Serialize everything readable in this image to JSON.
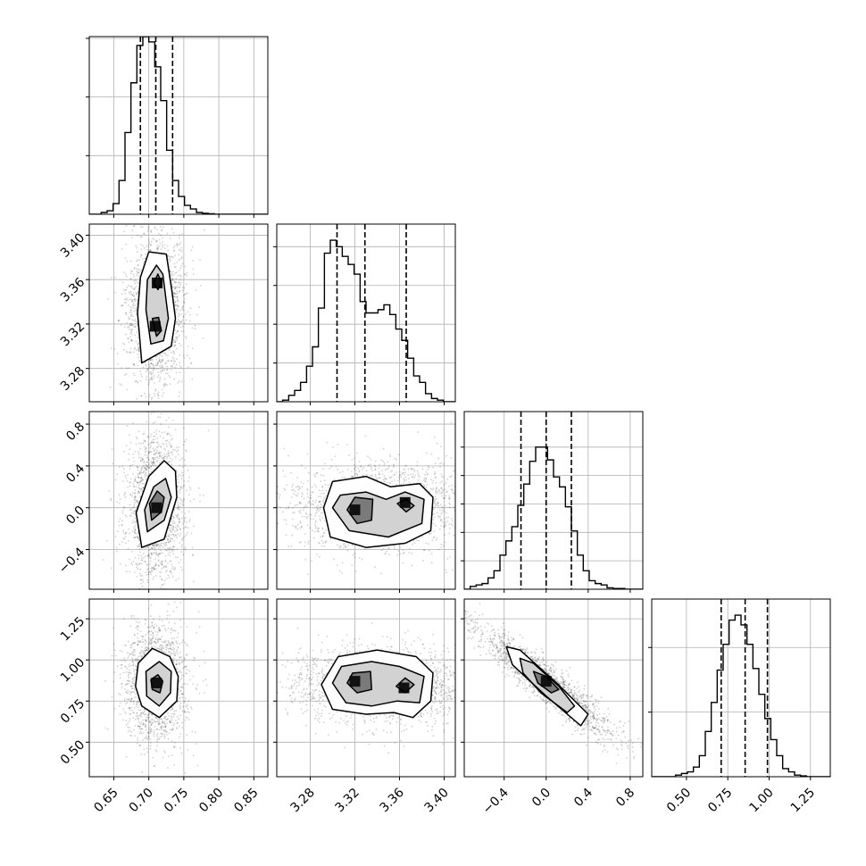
{
  "chart_data": {
    "type": "corner",
    "parameters": [
      {
        "range": [
          0.615,
          0.87
        ],
        "ticks": [
          0.65,
          0.7,
          0.75,
          0.8,
          0.85
        ],
        "tick_labels": [
          "0.65",
          "0.70",
          "0.75",
          "0.80",
          "0.85"
        ],
        "quantiles": [
          0.688,
          0.71,
          0.734
        ],
        "hist_ylim": [
          0,
          1
        ],
        "hist": {
          "edges": [
            0.615,
            0.6235,
            0.632,
            0.6405,
            0.649,
            0.6575,
            0.666,
            0.6745,
            0.683,
            0.6915,
            0.7,
            0.7085,
            0.717,
            0.7255,
            0.734,
            0.7425,
            0.751,
            0.7595,
            0.768,
            0.7765,
            0.785,
            0.7935,
            0.802,
            0.8105,
            0.819,
            0.8275,
            0.836,
            0.8445,
            0.853,
            0.8615,
            0.87
          ],
          "counts": [
            0,
            0,
            0.01,
            0.02,
            0.06,
            0.19,
            0.46,
            0.74,
            0.95,
            1.0,
            0.97,
            0.83,
            0.64,
            0.36,
            0.19,
            0.1,
            0.05,
            0.03,
            0.01,
            0.005,
            0.003,
            0,
            0,
            0,
            0,
            0,
            0,
            0,
            0,
            0
          ]
        }
      },
      {
        "range": [
          3.25,
          3.41
        ],
        "ticks": [
          3.28,
          3.32,
          3.36,
          3.4
        ],
        "tick_labels": [
          "3.28",
          "3.32",
          "3.36",
          "3.40"
        ],
        "quantiles": [
          3.304,
          3.329,
          3.366
        ],
        "hist_ylim": [
          0,
          1.1
        ],
        "hist": {
          "edges": [
            3.25,
            3.2553,
            3.2607,
            3.266,
            3.2713,
            3.2767,
            3.282,
            3.2873,
            3.2927,
            3.298,
            3.3033,
            3.3087,
            3.314,
            3.3193,
            3.3247,
            3.33,
            3.3353,
            3.3407,
            3.346,
            3.3513,
            3.3567,
            3.362,
            3.3673,
            3.3727,
            3.378,
            3.3833,
            3.3887,
            3.394,
            3.3993,
            3.4047,
            3.41
          ],
          "counts": [
            0,
            0.01,
            0.04,
            0.07,
            0.12,
            0.22,
            0.34,
            0.58,
            0.92,
            1.0,
            0.96,
            0.9,
            0.85,
            0.79,
            0.62,
            0.55,
            0.55,
            0.57,
            0.6,
            0.54,
            0.45,
            0.38,
            0.27,
            0.16,
            0.12,
            0.05,
            0.02,
            0.01,
            0,
            0
          ]
        }
      },
      {
        "range": [
          -0.78,
          0.92
        ],
        "ticks": [
          -0.4,
          0.0,
          0.4,
          0.8
        ],
        "tick_labels": [
          "−0.4",
          "0.0",
          "0.4",
          "0.8"
        ],
        "quantiles": [
          -0.24,
          0.0,
          0.24
        ],
        "hist_ylim": [
          0,
          1.25
        ],
        "hist": {
          "edges": [
            -0.78,
            -0.7233,
            -0.6667,
            -0.61,
            -0.5533,
            -0.4967,
            -0.44,
            -0.3833,
            -0.3267,
            -0.27,
            -0.2133,
            -0.1567,
            -0.1,
            -0.0433,
            0.0133,
            0.07,
            0.1267,
            0.1833,
            0.24,
            0.2967,
            0.3533,
            0.41,
            0.4667,
            0.5233,
            0.58,
            0.6367,
            0.6933,
            0.75,
            0.8067,
            0.8633,
            0.92
          ],
          "counts": [
            0,
            0.02,
            0.03,
            0.04,
            0.08,
            0.13,
            0.24,
            0.34,
            0.44,
            0.59,
            0.74,
            0.9,
            1.0,
            1.0,
            0.91,
            0.79,
            0.72,
            0.58,
            0.41,
            0.24,
            0.13,
            0.06,
            0.04,
            0.03,
            0.01,
            0.005,
            0.005,
            0,
            0,
            0
          ]
        }
      },
      {
        "range": [
          0.29,
          1.37
        ],
        "ticks": [
          0.5,
          0.75,
          1.0,
          1.25
        ],
        "tick_labels": [
          "0.50",
          "0.75",
          "1.00",
          "1.25"
        ],
        "quantiles": [
          0.71,
          0.855,
          0.99
        ],
        "hist_ylim": [
          0,
          1.1
        ],
        "hist": {
          "edges": [
            0.29,
            0.326,
            0.362,
            0.398,
            0.434,
            0.47,
            0.506,
            0.542,
            0.578,
            0.614,
            0.65,
            0.686,
            0.722,
            0.758,
            0.794,
            0.83,
            0.866,
            0.902,
            0.938,
            0.974,
            1.01,
            1.046,
            1.082,
            1.118,
            1.154,
            1.19,
            1.226,
            1.262,
            1.298,
            1.334,
            1.37
          ],
          "counts": [
            0,
            0,
            0,
            0,
            0.01,
            0.02,
            0.03,
            0.06,
            0.13,
            0.28,
            0.46,
            0.66,
            0.82,
            0.97,
            1.0,
            0.94,
            0.82,
            0.67,
            0.51,
            0.36,
            0.23,
            0.13,
            0.05,
            0.03,
            0.01,
            0.005,
            0,
            0,
            0,
            0
          ]
        }
      }
    ],
    "pairs": [
      {
        "row": 1,
        "col": 0,
        "x_center": 0.71,
        "y_center": 3.338,
        "x_sigma": 0.018,
        "y_sigma": 0.035,
        "modes": [
          [
            0.712,
            3.357
          ],
          [
            0.709,
            3.318
          ]
        ],
        "contour_levels": [
          [
            [
              0.684,
              3.33
            ],
            [
              0.69,
              3.285
            ],
            [
              0.71,
              3.292
            ],
            [
              0.732,
              3.3
            ],
            [
              0.738,
              3.325
            ],
            [
              0.733,
              3.35
            ],
            [
              0.725,
              3.383
            ],
            [
              0.7,
              3.385
            ],
            [
              0.688,
              3.362
            ]
          ],
          [
            [
              0.696,
              3.333
            ],
            [
              0.703,
              3.302
            ],
            [
              0.721,
              3.305
            ],
            [
              0.728,
              3.325
            ],
            [
              0.72,
              3.365
            ],
            [
              0.711,
              3.373
            ],
            [
              0.698,
              3.36
            ]
          ],
          [
            [
              0.705,
              3.325
            ],
            [
              0.711,
              3.309
            ],
            [
              0.718,
              3.314
            ],
            [
              0.714,
              3.326
            ]
          ],
          [
            [
              0.707,
              3.357
            ],
            [
              0.713,
              3.351
            ],
            [
              0.718,
              3.357
            ],
            [
              0.713,
              3.365
            ]
          ]
        ]
      },
      {
        "row": 2,
        "col": 0,
        "x_center": 0.71,
        "y_center": 0.0,
        "x_sigma": 0.016,
        "y_sigma": 0.26,
        "modes": [
          [
            0.711,
            0.0
          ]
        ],
        "contour_levels": [
          [
            [
              0.69,
              -0.38
            ],
            [
              0.722,
              -0.3
            ],
            [
              0.74,
              0.1
            ],
            [
              0.738,
              0.35
            ],
            [
              0.722,
              0.45
            ],
            [
              0.7,
              0.3
            ],
            [
              0.682,
              -0.05
            ]
          ],
          [
            [
              0.698,
              -0.23
            ],
            [
              0.722,
              -0.12
            ],
            [
              0.732,
              0.1
            ],
            [
              0.724,
              0.28
            ],
            [
              0.707,
              0.2
            ],
            [
              0.694,
              -0.02
            ]
          ],
          [
            [
              0.704,
              -0.12
            ],
            [
              0.718,
              -0.04
            ],
            [
              0.722,
              0.1
            ],
            [
              0.712,
              0.16
            ],
            [
              0.701,
              0.04
            ]
          ]
        ]
      },
      {
        "row": 2,
        "col": 1,
        "x_center": 3.338,
        "y_center": 0.0,
        "x_sigma": 0.035,
        "y_sigma": 0.26,
        "modes": [
          [
            3.32,
            -0.02
          ],
          [
            3.365,
            0.05
          ]
        ],
        "contour_levels": [
          [
            [
              3.292,
              0.0
            ],
            [
              3.298,
              -0.28
            ],
            [
              3.33,
              -0.38
            ],
            [
              3.365,
              -0.34
            ],
            [
              3.388,
              -0.22
            ],
            [
              3.39,
              0.1
            ],
            [
              3.378,
              0.23
            ],
            [
              3.352,
              0.2
            ],
            [
              3.33,
              0.3
            ],
            [
              3.3,
              0.25
            ]
          ],
          [
            [
              3.3,
              0.0
            ],
            [
              3.315,
              -0.22
            ],
            [
              3.35,
              -0.28
            ],
            [
              3.38,
              -0.15
            ],
            [
              3.382,
              0.08
            ],
            [
              3.365,
              0.15
            ],
            [
              3.348,
              0.08
            ],
            [
              3.33,
              0.15
            ],
            [
              3.307,
              0.12
            ]
          ],
          [
            [
              3.313,
              -0.02
            ],
            [
              3.322,
              -0.15
            ],
            [
              3.335,
              -0.12
            ],
            [
              3.336,
              0.08
            ],
            [
              3.32,
              0.1
            ]
          ],
          [
            [
              3.358,
              0.04
            ],
            [
              3.366,
              -0.04
            ],
            [
              3.373,
              0.02
            ],
            [
              3.366,
              0.08
            ]
          ]
        ]
      },
      {
        "row": 3,
        "col": 0,
        "x_center": 0.71,
        "y_center": 0.86,
        "x_sigma": 0.017,
        "y_sigma": 0.135,
        "modes": [
          [
            0.711,
            0.86
          ]
        ],
        "contour_levels": [
          [
            [
              0.69,
              0.72
            ],
            [
              0.715,
              0.65
            ],
            [
              0.74,
              0.75
            ],
            [
              0.742,
              0.9
            ],
            [
              0.73,
              1.02
            ],
            [
              0.705,
              1.07
            ],
            [
              0.685,
              0.98
            ],
            [
              0.681,
              0.84
            ]
          ],
          [
            [
              0.697,
              0.78
            ],
            [
              0.715,
              0.72
            ],
            [
              0.731,
              0.8
            ],
            [
              0.732,
              0.93
            ],
            [
              0.715,
              0.99
            ],
            [
              0.696,
              0.93
            ]
          ],
          [
            [
              0.705,
              0.82
            ],
            [
              0.716,
              0.8
            ],
            [
              0.72,
              0.87
            ],
            [
              0.713,
              0.91
            ],
            [
              0.703,
              0.88
            ]
          ]
        ]
      },
      {
        "row": 3,
        "col": 1,
        "x_center": 3.338,
        "y_center": 0.86,
        "x_sigma": 0.035,
        "y_sigma": 0.135,
        "modes": [
          [
            3.32,
            0.87
          ],
          [
            3.364,
            0.83
          ]
        ],
        "contour_levels": [
          [
            [
              3.29,
              0.85
            ],
            [
              3.3,
              0.7
            ],
            [
              3.33,
              0.67
            ],
            [
              3.355,
              0.68
            ],
            [
              3.372,
              0.65
            ],
            [
              3.388,
              0.75
            ],
            [
              3.39,
              0.92
            ],
            [
              3.375,
              1.02
            ],
            [
              3.34,
              1.06
            ],
            [
              3.305,
              1.02
            ]
          ],
          [
            [
              3.3,
              0.86
            ],
            [
              3.312,
              0.74
            ],
            [
              3.335,
              0.72
            ],
            [
              3.358,
              0.75
            ],
            [
              3.378,
              0.74
            ],
            [
              3.382,
              0.9
            ],
            [
              3.36,
              0.96
            ],
            [
              3.335,
              0.99
            ],
            [
              3.308,
              0.96
            ]
          ],
          [
            [
              3.313,
              0.86
            ],
            [
              3.322,
              0.8
            ],
            [
              3.335,
              0.82
            ],
            [
              3.334,
              0.93
            ],
            [
              3.318,
              0.92
            ]
          ],
          [
            [
              3.357,
              0.84
            ],
            [
              3.365,
              0.8
            ],
            [
              3.373,
              0.85
            ],
            [
              3.365,
              0.89
            ]
          ]
        ]
      },
      {
        "row": 3,
        "col": 2,
        "x_center": 0.0,
        "y_center": 0.86,
        "x_sigma": 0.25,
        "y_sigma": 0.13,
        "correlation": -0.93,
        "modes": [
          [
            0.0,
            0.87
          ]
        ],
        "contour_levels": [
          [
            [
              -0.38,
              1.08
            ],
            [
              -0.25,
              1.06
            ],
            [
              0.1,
              0.86
            ],
            [
              0.4,
              0.67
            ],
            [
              0.33,
              0.6
            ],
            [
              0.0,
              0.78
            ],
            [
              -0.32,
              0.97
            ]
          ],
          [
            [
              -0.25,
              1.01
            ],
            [
              -0.12,
              0.98
            ],
            [
              0.12,
              0.84
            ],
            [
              0.27,
              0.72
            ],
            [
              0.2,
              0.68
            ],
            [
              -0.05,
              0.8
            ],
            [
              -0.22,
              0.92
            ]
          ],
          [
            [
              -0.12,
              0.93
            ],
            [
              0.0,
              0.9
            ],
            [
              0.12,
              0.82
            ],
            [
              0.05,
              0.8
            ],
            [
              -0.08,
              0.86
            ]
          ]
        ]
      }
    ]
  }
}
